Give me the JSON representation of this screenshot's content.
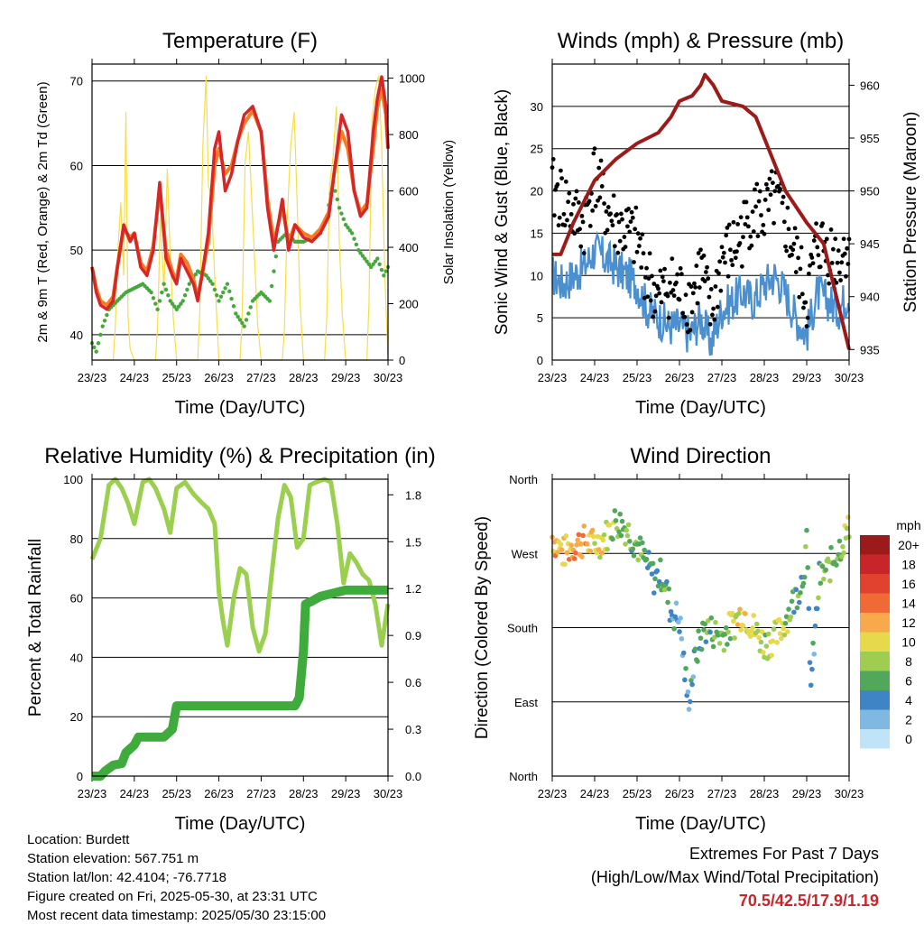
{
  "info": {
    "location": "Location: Burdett",
    "elevation": "Station elevation: 567.751 m",
    "latlon": "Station lat/lon: 42.4104; -76.7718",
    "created": "Figure created on Fri, 2025-05-30, at 23:31 UTC",
    "recent": "Most recent data timestamp: 2025/05/30 23:15:00"
  },
  "extremes": {
    "heading": "Extremes For Past 7 Days",
    "subheading": "(High/Low/Max Wind/Total Precipitation)",
    "values": "70.5/42.5/17.9/1.19"
  },
  "colors": {
    "temp2m": "#d62728",
    "temp9m": "#f57c20",
    "dewpoint": "#46a83c",
    "solar": "#f7dd4a",
    "wind": "#4a90d0",
    "gust": "#000000",
    "pressure": "#9b1b1b",
    "rh": "#9bcf4f",
    "rain": "#3fab3c"
  },
  "chart_data": [
    {
      "type": "line",
      "title": "Temperature (F)",
      "xlabel": "Time (Day/UTC)",
      "ylabel": "2m & 9m T (Red, Orange) & 2m Td (Green)",
      "y2label": "Solar Insolation (Yellow)",
      "xticks": [
        "23/23",
        "24/23",
        "25/23",
        "26/23",
        "27/23",
        "28/23",
        "29/23",
        "30/23"
      ],
      "xlim": [
        0,
        7
      ],
      "ylim": [
        37,
        72
      ],
      "yticks": [
        40,
        50,
        60,
        70
      ],
      "y2lim": [
        0,
        1050
      ],
      "y2ticks": [
        0,
        200,
        400,
        600,
        800,
        1000
      ],
      "grid": true,
      "series": [
        {
          "key": "temp2m",
          "axis": "left",
          "x": [
            0,
            0.1,
            0.2,
            0.35,
            0.5,
            0.6,
            0.75,
            0.9,
            1.0,
            1.15,
            1.3,
            1.45,
            1.6,
            1.75,
            1.9,
            2.0,
            2.1,
            2.25,
            2.4,
            2.5,
            2.6,
            2.75,
            2.9,
            3.0,
            3.15,
            3.3,
            3.45,
            3.6,
            3.8,
            4.0,
            4.15,
            4.3,
            4.5,
            4.65,
            4.8,
            5.0,
            5.2,
            5.4,
            5.6,
            5.75,
            5.9,
            6.05,
            6.2,
            6.35,
            6.5,
            6.65,
            6.75,
            6.85,
            6.95,
            7.0
          ],
          "y": [
            48,
            45,
            43.5,
            43,
            44,
            48,
            53,
            51,
            52,
            48,
            47,
            50,
            58,
            49,
            47,
            46,
            49,
            47.5,
            46,
            44,
            47,
            52,
            62,
            64,
            57,
            59,
            63,
            66,
            67,
            64,
            55,
            50,
            56,
            50,
            53,
            51.5,
            51,
            52,
            54,
            60,
            66,
            64,
            57,
            54,
            55,
            64,
            68,
            70.5,
            67,
            62
          ]
        },
        {
          "key": "temp9m",
          "axis": "left",
          "x": [
            0,
            0.1,
            0.2,
            0.35,
            0.5,
            0.6,
            0.75,
            0.9,
            1.0,
            1.15,
            1.3,
            1.45,
            1.6,
            1.75,
            1.9,
            2.0,
            2.1,
            2.25,
            2.4,
            2.5,
            2.6,
            2.75,
            2.9,
            3.0,
            3.15,
            3.3,
            3.45,
            3.6,
            3.8,
            4.0,
            4.15,
            4.3,
            4.5,
            4.65,
            4.8,
            5.0,
            5.2,
            5.4,
            5.6,
            5.75,
            5.9,
            6.05,
            6.2,
            6.35,
            6.5,
            6.65,
            6.75,
            6.85,
            6.95,
            7.0
          ],
          "y": [
            48,
            45.5,
            44,
            43.5,
            44.5,
            48,
            52.5,
            51.5,
            52,
            48.5,
            47.5,
            50.5,
            57,
            50,
            47.5,
            46.5,
            49.5,
            48.5,
            46.5,
            44.5,
            47,
            51,
            60,
            62,
            59,
            60,
            63,
            65,
            66.5,
            64,
            56,
            51,
            55,
            51,
            53,
            52,
            51.5,
            52.5,
            54.5,
            60,
            64,
            62,
            57,
            54.5,
            55.5,
            62,
            67,
            69,
            66,
            62
          ]
        },
        {
          "key": "dewpoint",
          "axis": "left",
          "x": [
            0,
            0.1,
            0.25,
            0.4,
            0.6,
            0.8,
            1.0,
            1.2,
            1.4,
            1.55,
            1.7,
            1.85,
            2.0,
            2.15,
            2.3,
            2.5,
            2.7,
            2.85,
            3.0,
            3.2,
            3.4,
            3.6,
            3.8,
            4.0,
            4.2,
            4.4,
            4.6,
            4.8,
            5.0,
            5.2,
            5.4,
            5.55,
            5.7,
            5.85,
            6.0,
            6.15,
            6.3,
            6.45,
            6.6,
            6.75,
            6.9,
            7.0
          ],
          "y": [
            39,
            38,
            41,
            43,
            44,
            45,
            45.5,
            46,
            45,
            43,
            46,
            44,
            43,
            44,
            46,
            47.5,
            47,
            46,
            44,
            46,
            42.5,
            41,
            44,
            45,
            44,
            51,
            52,
            51,
            51,
            51.5,
            52,
            54,
            58,
            55,
            53,
            52,
            50,
            49,
            48,
            49,
            47,
            48
          ]
        },
        {
          "key": "solar",
          "axis": "right",
          "x": [
            0,
            0.5,
            0.55,
            0.62,
            0.68,
            0.75,
            0.8,
            0.85,
            0.9,
            1.0,
            1.5,
            1.55,
            1.62,
            1.7,
            1.78,
            1.85,
            1.92,
            2.0,
            2.5,
            2.55,
            2.62,
            2.7,
            2.75,
            2.82,
            2.9,
            3.0,
            3.5,
            3.55,
            3.62,
            3.7,
            3.78,
            3.85,
            3.92,
            4.0,
            4.5,
            4.55,
            4.62,
            4.7,
            4.78,
            4.85,
            4.92,
            5.0,
            5.5,
            5.55,
            5.62,
            5.7,
            5.78,
            5.85,
            5.92,
            6.0,
            6.5,
            6.55,
            6.62,
            6.7,
            6.78,
            6.85,
            6.92,
            7.0
          ],
          "y": [
            0,
            0,
            120,
            410,
            560,
            300,
            880,
            160,
            40,
            0,
            0,
            120,
            520,
            240,
            680,
            360,
            150,
            0,
            0,
            180,
            760,
            1010,
            620,
            580,
            300,
            0,
            0,
            140,
            700,
            810,
            560,
            340,
            120,
            0,
            0,
            110,
            520,
            760,
            880,
            560,
            200,
            0,
            0,
            150,
            620,
            720,
            900,
            410,
            160,
            0,
            0,
            200,
            850,
            960,
            1010,
            760,
            320,
            0
          ]
        }
      ]
    },
    {
      "type": "scatter",
      "title": "Winds (mph) & Pressure (mb)",
      "xlabel": "Time (Day/UTC)",
      "ylabel": "Sonic Wind & Gust (Blue, Black)",
      "y2label": "Station Pressure (Maroon)",
      "xticks": [
        "23/23",
        "24/23",
        "25/23",
        "26/23",
        "27/23",
        "28/23",
        "29/23",
        "30/23"
      ],
      "xlim": [
        0,
        7
      ],
      "ylim": [
        0,
        35
      ],
      "yticks": [
        0,
        5,
        10,
        15,
        20,
        25,
        30
      ],
      "y2lim": [
        934,
        962
      ],
      "y2ticks": [
        935,
        940,
        945,
        950,
        955,
        960
      ],
      "grid": true,
      "series": [
        {
          "key": "wind",
          "axis": "left",
          "x": [
            0,
            0.25,
            0.5,
            0.75,
            1.0,
            1.25,
            1.5,
            1.75,
            2.0,
            2.25,
            2.5,
            2.75,
            3.0,
            3.25,
            3.5,
            3.75,
            4.0,
            4.25,
            4.5,
            4.75,
            5.0,
            5.25,
            5.5,
            5.75,
            6.0,
            6.25,
            6.5,
            6.75,
            7.0
          ],
          "y": [
            10,
            9,
            10,
            11,
            13,
            12,
            11,
            10,
            9,
            6,
            5,
            4,
            4,
            3,
            5,
            2,
            6,
            7,
            8,
            7,
            9,
            10,
            8,
            5,
            3,
            8,
            7,
            6,
            8
          ]
        },
        {
          "key": "gust",
          "axis": "left",
          "x": [
            0,
            0.25,
            0.5,
            0.75,
            1.0,
            1.25,
            1.5,
            1.75,
            2.0,
            2.25,
            2.5,
            2.75,
            3.0,
            3.25,
            3.5,
            3.75,
            4.0,
            4.25,
            4.5,
            4.75,
            5.0,
            5.25,
            5.5,
            5.75,
            6.0,
            6.25,
            6.5,
            6.75,
            7.0
          ],
          "y": [
            20,
            19,
            17,
            16,
            22,
            18,
            16,
            15,
            14,
            10,
            7,
            9,
            8,
            7,
            11,
            5,
            12,
            13,
            15,
            18,
            17,
            19,
            16,
            12,
            7,
            14,
            13,
            12,
            14
          ]
        },
        {
          "key": "pressure",
          "axis": "right",
          "x": [
            0,
            0.2,
            0.5,
            1.0,
            1.5,
            2.0,
            2.5,
            2.8,
            3.0,
            3.3,
            3.5,
            3.6,
            3.8,
            4.0,
            4.5,
            4.8,
            5.0,
            5.3,
            5.5,
            6.0,
            6.4,
            6.7,
            7.0
          ],
          "y": [
            944,
            944,
            947,
            951,
            953,
            954.5,
            955.5,
            957,
            958.5,
            959,
            960,
            961,
            960,
            958.5,
            958,
            957,
            955,
            952,
            950,
            947,
            945,
            940,
            935
          ]
        }
      ]
    },
    {
      "type": "line",
      "title": "Relative Humidity (%) & Precipitation (in)",
      "xlabel": "Time (Day/UTC)",
      "ylabel": "Percent & Total Rainfall",
      "xticks": [
        "23/23",
        "24/23",
        "25/23",
        "26/23",
        "27/23",
        "28/23",
        "29/23",
        "30/23"
      ],
      "xlim": [
        0,
        7
      ],
      "ylim": [
        0,
        100
      ],
      "yticks": [
        0,
        20,
        40,
        60,
        80,
        100
      ],
      "y2lim": [
        0,
        1.9
      ],
      "y2ticks": [
        "0.0",
        "0.3",
        "0.6",
        "0.9",
        "1.2",
        "1.5",
        "1.8"
      ],
      "grid": true,
      "series": [
        {
          "key": "rh",
          "axis": "left",
          "x": [
            0,
            0.2,
            0.4,
            0.55,
            0.7,
            0.85,
            1.0,
            1.2,
            1.35,
            1.5,
            1.7,
            1.85,
            2.0,
            2.2,
            2.4,
            2.6,
            2.75,
            2.9,
            3.0,
            3.1,
            3.2,
            3.35,
            3.5,
            3.65,
            3.8,
            3.95,
            4.1,
            4.25,
            4.4,
            4.55,
            4.7,
            4.85,
            5.0,
            5.15,
            5.3,
            5.5,
            5.65,
            5.8,
            5.95,
            6.1,
            6.25,
            6.4,
            6.55,
            6.7,
            6.85,
            7.0
          ],
          "y": [
            73,
            80,
            98,
            100,
            97,
            92,
            85,
            99,
            100,
            97,
            90,
            82,
            97,
            99,
            95,
            92,
            90,
            85,
            62,
            52,
            44,
            60,
            70,
            68,
            50,
            42,
            48,
            68,
            87,
            98,
            94,
            77,
            80,
            98,
            99,
            100,
            99,
            85,
            65,
            75,
            72,
            68,
            66,
            58,
            44,
            58
          ]
        },
        {
          "key": "rain",
          "axis": "right",
          "x": [
            0,
            0.2,
            0.3,
            0.5,
            0.7,
            0.8,
            1.0,
            1.1,
            1.3,
            1.5,
            1.7,
            1.9,
            2.0,
            2.3,
            2.6,
            3.0,
            3.5,
            4.0,
            4.5,
            4.8,
            4.9,
            5.0,
            5.05,
            5.2,
            5.4,
            6.0,
            6.5,
            7.0
          ],
          "y": [
            0,
            0,
            0.03,
            0.07,
            0.08,
            0.15,
            0.2,
            0.25,
            0.25,
            0.25,
            0.25,
            0.3,
            0.45,
            0.45,
            0.45,
            0.45,
            0.45,
            0.45,
            0.45,
            0.45,
            0.5,
            0.8,
            1.1,
            1.12,
            1.15,
            1.19,
            1.19,
            1.19
          ]
        }
      ]
    },
    {
      "type": "scatter",
      "title": "Wind Direction",
      "xlabel": "Time (Day/UTC)",
      "ylabel": "Direction (Colored By Speed)",
      "xticks": [
        "23/23",
        "24/23",
        "25/23",
        "26/23",
        "27/23",
        "28/23",
        "29/23",
        "30/23"
      ],
      "xlim": [
        0,
        7
      ],
      "ylim": [
        0,
        360
      ],
      "yticks": [
        "North",
        "East",
        "South",
        "West",
        "North"
      ],
      "grid": true,
      "legend_title": "mph",
      "legend_labels": [
        "20+",
        "18",
        "16",
        "14",
        "12",
        "10",
        "8",
        "6",
        "4",
        "2",
        "0"
      ],
      "legend_colors": [
        "#9b1b1b",
        "#c8252b",
        "#e1412f",
        "#f06a35",
        "#f7a94b",
        "#e6d94a",
        "#9ecd52",
        "#52a85a",
        "#3f84c4",
        "#7fb8e0",
        "#bfe3f7"
      ],
      "series": [
        {
          "key": "direction",
          "x": [
            0,
            0.25,
            0.5,
            0.75,
            1.0,
            1.25,
            1.5,
            1.75,
            2.0,
            2.2,
            2.4,
            2.6,
            2.8,
            3.0,
            3.2,
            3.4,
            3.6,
            3.8,
            4.0,
            4.2,
            4.5,
            4.8,
            5.0,
            5.3,
            5.6,
            5.9,
            6.0,
            6.1,
            6.3,
            6.5,
            6.7,
            7.0
          ],
          "y": [
            290,
            270,
            280,
            285,
            280,
            290,
            310,
            300,
            280,
            260,
            240,
            245,
            200,
            190,
            90,
            150,
            180,
            175,
            170,
            180,
            200,
            175,
            160,
            170,
            200,
            240,
            280,
            110,
            240,
            250,
            270,
            300
          ],
          "speed": [
            12,
            11,
            12,
            13,
            10,
            9,
            8,
            7,
            6,
            5,
            4,
            6,
            5,
            4,
            3,
            5,
            6,
            7,
            7,
            8,
            11,
            9,
            8,
            10,
            7,
            6,
            7,
            3,
            6,
            7,
            8,
            9
          ]
        }
      ]
    }
  ]
}
